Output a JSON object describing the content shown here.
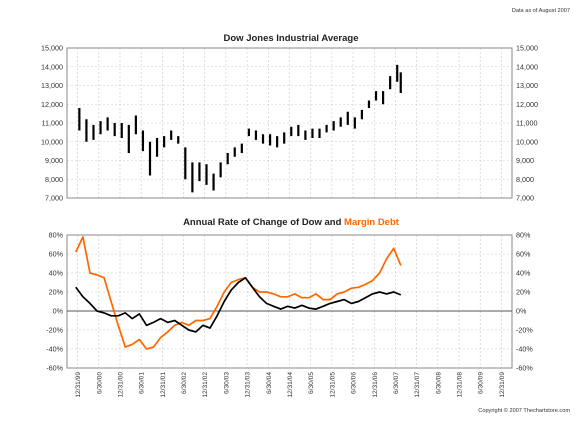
{
  "note_top": "Data as of August 2007",
  "copyright": "Copyright © 2007 Thechartstore.com",
  "colors": {
    "dow": "#000000",
    "margin": "#ff6600",
    "grid": "#c8c8c8",
    "frame": "#8a8a8a"
  },
  "x_labels": [
    "12/31/99",
    "6/30/00",
    "12/31/00",
    "6/30/01",
    "12/31/01",
    "6/30/02",
    "12/31/02",
    "6/30/03",
    "12/31/03",
    "6/30/04",
    "12/31/04",
    "6/30/05",
    "12/31/05",
    "6/30/06",
    "12/31/06",
    "6/30/07",
    "12/31/07",
    "6/30/08",
    "12/31/08",
    "6/30/09",
    "12/31/09"
  ],
  "chart_data": [
    {
      "type": "bar",
      "title": "Dow Jones Industrial Average",
      "ylim": [
        7000,
        15000
      ],
      "y_ticks": [
        "15,000",
        "14,000",
        "13,000",
        "12,000",
        "11,000",
        "10,000",
        "9,000",
        "8,000",
        "7,000"
      ],
      "grid": true,
      "x": [
        "2000-01",
        "2000-03",
        "2000-05",
        "2000-07",
        "2000-09",
        "2000-11",
        "2001-01",
        "2001-03",
        "2001-05",
        "2001-07",
        "2001-09",
        "2001-11",
        "2002-01",
        "2002-03",
        "2002-05",
        "2002-07",
        "2002-09",
        "2002-11",
        "2003-01",
        "2003-03",
        "2003-05",
        "2003-07",
        "2003-09",
        "2003-11",
        "2004-01",
        "2004-03",
        "2004-05",
        "2004-07",
        "2004-09",
        "2004-11",
        "2005-01",
        "2005-03",
        "2005-05",
        "2005-07",
        "2005-09",
        "2005-11",
        "2006-01",
        "2006-03",
        "2006-05",
        "2006-07",
        "2006-09",
        "2006-11",
        "2007-01",
        "2007-03",
        "2007-05",
        "2007-07",
        "2007-08"
      ],
      "high": [
        11800,
        11200,
        10900,
        11100,
        11300,
        11000,
        11000,
        10900,
        11400,
        10600,
        10000,
        10200,
        10300,
        10600,
        10300,
        9700,
        8900,
        8900,
        8800,
        8300,
        8900,
        9400,
        9700,
        9900,
        10700,
        10600,
        10400,
        10400,
        10300,
        10500,
        10800,
        10900,
        10600,
        10700,
        10700,
        10900,
        11100,
        11300,
        11600,
        11300,
        11700,
        12200,
        12700,
        12700,
        13500,
        14100,
        13700
      ],
      "low": [
        10600,
        10000,
        10100,
        10400,
        10600,
        10300,
        10200,
        9400,
        10400,
        9500,
        8200,
        9200,
        9700,
        10100,
        9900,
        8000,
        7300,
        7900,
        7700,
        7400,
        8100,
        8800,
        9200,
        9400,
        10300,
        10100,
        9900,
        9800,
        9700,
        9900,
        10300,
        10300,
        10100,
        10200,
        10200,
        10500,
        10600,
        10800,
        10900,
        10700,
        11200,
        11800,
        12200,
        12000,
        12800,
        13200,
        12600
      ]
    },
    {
      "type": "line",
      "title": "Annual Rate of Change of Dow and",
      "title_highlight": "Margin Debt",
      "ylim": [
        -60,
        80
      ],
      "y_ticks": [
        "80%",
        "60%",
        "40%",
        "20%",
        "0%",
        "-20%",
        "-40%",
        "-60%"
      ],
      "grid": true,
      "x": [
        "1999-12",
        "2000-02",
        "2000-04",
        "2000-06",
        "2000-08",
        "2000-10",
        "2000-12",
        "2001-02",
        "2001-04",
        "2001-06",
        "2001-08",
        "2001-10",
        "2001-12",
        "2002-02",
        "2002-04",
        "2002-06",
        "2002-08",
        "2002-10",
        "2002-12",
        "2003-02",
        "2003-04",
        "2003-06",
        "2003-08",
        "2003-10",
        "2003-12",
        "2004-02",
        "2004-04",
        "2004-06",
        "2004-08",
        "2004-10",
        "2004-12",
        "2005-02",
        "2005-04",
        "2005-06",
        "2005-08",
        "2005-10",
        "2005-12",
        "2006-02",
        "2006-04",
        "2006-06",
        "2006-08",
        "2006-10",
        "2006-12",
        "2007-02",
        "2007-04",
        "2007-06",
        "2007-08"
      ],
      "series": [
        {
          "values": [
            25,
            15,
            8,
            0,
            -2,
            -5,
            -5,
            -2,
            -8,
            -3,
            -15,
            -12,
            -8,
            -12,
            -10,
            -15,
            -20,
            -22,
            -15,
            -18,
            -5,
            10,
            22,
            30,
            35,
            25,
            15,
            8,
            5,
            2,
            5,
            3,
            6,
            3,
            2,
            5,
            8,
            10,
            12,
            8,
            10,
            14,
            18,
            20,
            18,
            20,
            17
          ]
        },
        {
          "values": [
            62,
            78,
            40,
            38,
            35,
            10,
            -15,
            -38,
            -35,
            -30,
            -40,
            -38,
            -28,
            -22,
            -15,
            -12,
            -15,
            -10,
            -10,
            -8,
            5,
            20,
            30,
            33,
            35,
            25,
            20,
            20,
            18,
            15,
            15,
            18,
            14,
            14,
            18,
            12,
            12,
            18,
            20,
            24,
            25,
            28,
            32,
            40,
            55,
            66,
            48
          ]
        }
      ]
    }
  ]
}
